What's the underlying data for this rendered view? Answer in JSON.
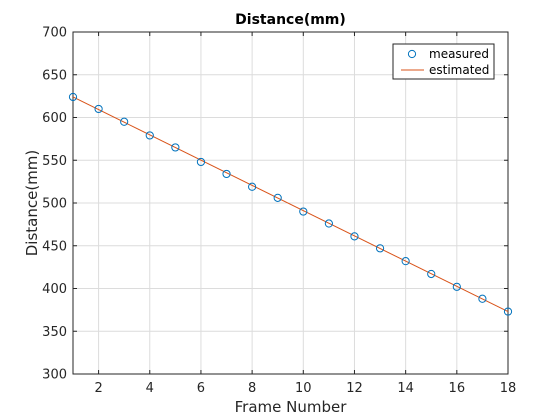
{
  "chart_data": {
    "type": "line",
    "title": "Distance(mm)",
    "xlabel": "Frame Number",
    "ylabel": "Distance(mm)",
    "xlim": [
      1,
      18
    ],
    "ylim": [
      300,
      700
    ],
    "xticks": [
      2,
      4,
      6,
      8,
      10,
      12,
      14,
      16,
      18
    ],
    "yticks": [
      300,
      350,
      400,
      450,
      500,
      550,
      600,
      650,
      700
    ],
    "grid": true,
    "legend_position": "top-right",
    "series": [
      {
        "name": "measured",
        "style": "markers",
        "marker": "circle",
        "color": "#0072BD",
        "x": [
          1,
          2,
          3,
          4,
          5,
          6,
          7,
          8,
          9,
          10,
          11,
          12,
          13,
          14,
          15,
          16,
          17,
          18
        ],
        "values": [
          624,
          610,
          595,
          579,
          565,
          548,
          534,
          519,
          506,
          490,
          476,
          461,
          447,
          432,
          417,
          402,
          388,
          373
        ]
      },
      {
        "name": "estimated",
        "style": "line",
        "color": "#D95319",
        "x": [
          1,
          18
        ],
        "values": [
          624,
          373
        ]
      }
    ]
  }
}
